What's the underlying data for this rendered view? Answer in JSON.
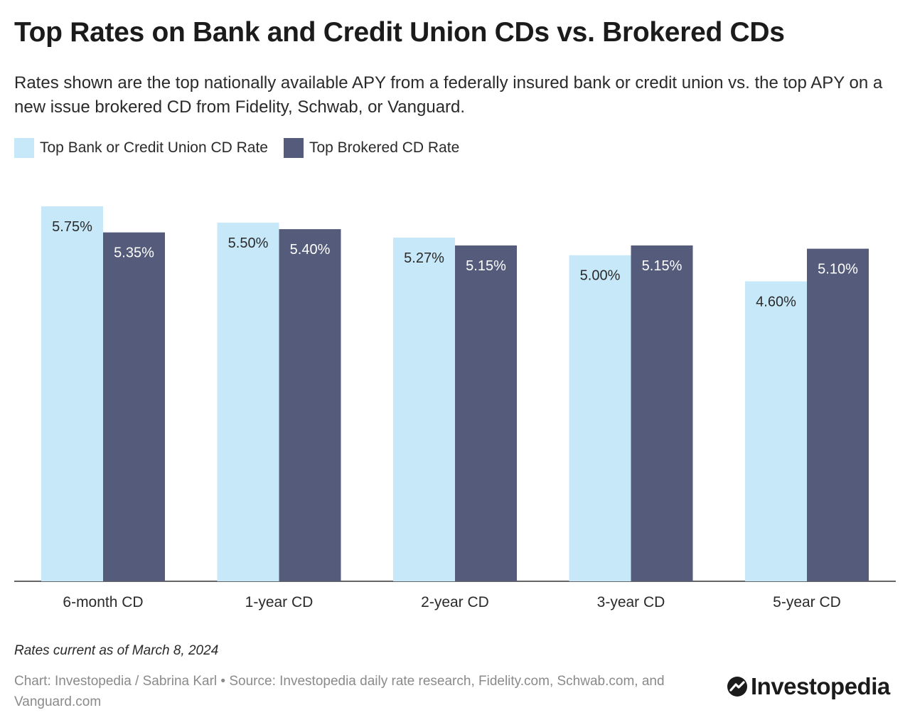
{
  "title": "Top Rates on Bank and Credit Union CDs vs. Brokered CDs",
  "subtitle": "Rates shown are the top nationally available APY from a federally insured bank or credit union vs. the top APY on a new issue brokered CD from Fidelity, Schwab, or Vanguard.",
  "note": "Rates current as of March 8, 2024",
  "credit": "Chart: Investopedia / Sabrina Karl • Source: Investopedia daily rate research, Fidelity.com, Schwab.com, and Vanguard.com",
  "logo_text": "Investopedia",
  "logo_icon": "investopedia-logo-icon",
  "colors": {
    "bank": "#c6e8f8",
    "brokered": "#555b7b",
    "axis": "#333333",
    "label_on_light": "#2a2a2a",
    "label_on_dark": "#ffffff"
  },
  "chart_data": {
    "type": "bar",
    "title": "Top Rates on Bank and Credit Union CDs vs. Brokered CDs",
    "categories": [
      "6-month CD",
      "1-year CD",
      "2-year CD",
      "3-year CD",
      "5-year CD"
    ],
    "series": [
      {
        "name": "Top Bank or Credit Union CD Rate",
        "values": [
          5.75,
          5.5,
          5.27,
          5.0,
          4.6
        ],
        "labels": [
          "5.75%",
          "5.50%",
          "5.27%",
          "5.00%",
          "4.60%"
        ],
        "color": "#c6e8f8"
      },
      {
        "name": "Top Brokered CD Rate",
        "values": [
          5.35,
          5.4,
          5.15,
          5.15,
          5.1
        ],
        "labels": [
          "5.35%",
          "5.40%",
          "5.15%",
          "5.15%",
          "5.10%"
        ],
        "color": "#555b7b"
      }
    ],
    "ylim": [
      0,
      5.75
    ],
    "grid": false,
    "legend_position": "top-left"
  }
}
